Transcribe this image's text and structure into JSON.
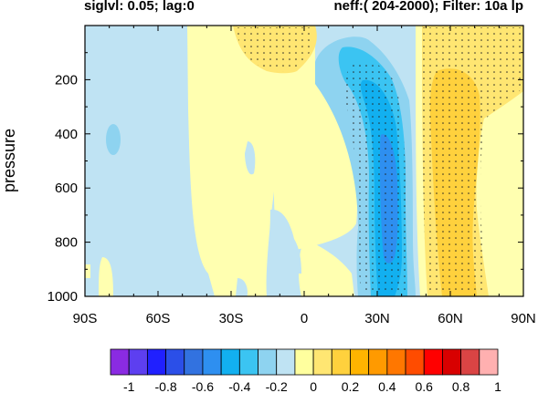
{
  "chart_data": {
    "type": "heatmap",
    "subtitle_left": "siglvl: 0.05; lag:0",
    "subtitle_right": "neff:( 204-2000); Filter: 10a lp",
    "ylabel": "pressure",
    "xlabel": "",
    "x_ticks": [
      "90S",
      "60S",
      "30S",
      "0",
      "30N",
      "60N",
      "90N"
    ],
    "x_tick_values": [
      -90,
      -60,
      -30,
      0,
      30,
      60,
      90
    ],
    "y_ticks": [
      "200",
      "400",
      "600",
      "800",
      "1000"
    ],
    "y_tick_values": [
      200,
      400,
      600,
      800,
      1000
    ],
    "xlim": [
      -90,
      90
    ],
    "ylim": [
      1000,
      0
    ],
    "colorbar": {
      "labels": [
        "-1",
        "-0.8",
        "-0.6",
        "-0.4",
        "-0.2",
        "0",
        "0.2",
        "0.4",
        "0.6",
        "0.8",
        "1"
      ],
      "colors": [
        "#8a2be2",
        "#5d3ff0",
        "#2020ff",
        "#2b4fe8",
        "#3272e0",
        "#2e8ff0",
        "#12b0f0",
        "#3bc4f2",
        "#8ed3f0",
        "#bfe3f3",
        "#ffff9e",
        "#ffe672",
        "#ffd13d",
        "#ffb400",
        "#ff9a00",
        "#ff7700",
        "#ff4c00",
        "#ff0000",
        "#d80000",
        "#da4444",
        "#ffb0b0"
      ]
    },
    "stipple_note": "dots mark significance at siglvl 0.05"
  }
}
